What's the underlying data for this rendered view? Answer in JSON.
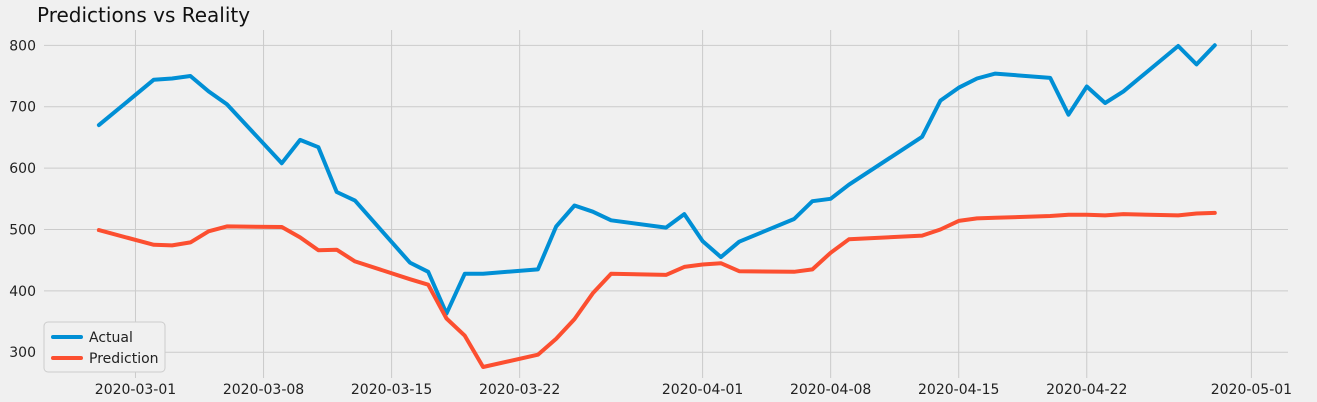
{
  "chart_data": {
    "type": "line",
    "title": "Predictions vs Reality",
    "xlabel": "",
    "ylabel": "",
    "x_range": [
      "2020-02-25",
      "2020-05-03"
    ],
    "ylim": [
      258,
      825
    ],
    "grid": true,
    "legend_position": "lower-left",
    "x_ticks": [
      "2020-03-01",
      "2020-03-08",
      "2020-03-15",
      "2020-03-22",
      "2020-04-01",
      "2020-04-08",
      "2020-04-15",
      "2020-04-22",
      "2020-05-01"
    ],
    "y_ticks": [
      300,
      400,
      500,
      600,
      700,
      800
    ],
    "series": [
      {
        "name": "Actual",
        "color": "#008fd5",
        "points": [
          [
            "2020-02-28",
            670
          ],
          [
            "2020-03-02",
            744
          ],
          [
            "2020-03-03",
            746
          ],
          [
            "2020-03-04",
            750
          ],
          [
            "2020-03-05",
            725
          ],
          [
            "2020-03-06",
            704
          ],
          [
            "2020-03-09",
            608
          ],
          [
            "2020-03-10",
            646
          ],
          [
            "2020-03-11",
            634
          ],
          [
            "2020-03-12",
            561
          ],
          [
            "2020-03-13",
            547
          ],
          [
            "2020-03-16",
            446
          ],
          [
            "2020-03-17",
            431
          ],
          [
            "2020-03-18",
            363
          ],
          [
            "2020-03-19",
            428
          ],
          [
            "2020-03-20",
            428
          ],
          [
            "2020-03-23",
            435
          ],
          [
            "2020-03-24",
            505
          ],
          [
            "2020-03-25",
            539
          ],
          [
            "2020-03-26",
            529
          ],
          [
            "2020-03-27",
            515
          ],
          [
            "2020-03-30",
            503
          ],
          [
            "2020-03-31",
            525
          ],
          [
            "2020-04-01",
            481
          ],
          [
            "2020-04-02",
            455
          ],
          [
            "2020-04-03",
            480
          ],
          [
            "2020-04-06",
            517
          ],
          [
            "2020-04-07",
            546
          ],
          [
            "2020-04-08",
            550
          ],
          [
            "2020-04-09",
            573
          ],
          [
            "2020-04-13",
            651
          ],
          [
            "2020-04-14",
            710
          ],
          [
            "2020-04-15",
            731
          ],
          [
            "2020-04-16",
            746
          ],
          [
            "2020-04-17",
            754
          ],
          [
            "2020-04-20",
            747
          ],
          [
            "2020-04-21",
            687
          ],
          [
            "2020-04-22",
            733
          ],
          [
            "2020-04-23",
            706
          ],
          [
            "2020-04-24",
            725
          ],
          [
            "2020-04-27",
            799
          ],
          [
            "2020-04-28",
            769
          ],
          [
            "2020-04-29",
            800
          ]
        ]
      },
      {
        "name": "Prediction",
        "color": "#fc4f30",
        "points": [
          [
            "2020-02-28",
            499
          ],
          [
            "2020-03-02",
            475
          ],
          [
            "2020-03-03",
            474
          ],
          [
            "2020-03-04",
            479
          ],
          [
            "2020-03-05",
            497
          ],
          [
            "2020-03-06",
            505
          ],
          [
            "2020-03-09",
            504
          ],
          [
            "2020-03-10",
            487
          ],
          [
            "2020-03-11",
            466
          ],
          [
            "2020-03-12",
            467
          ],
          [
            "2020-03-13",
            448
          ],
          [
            "2020-03-16",
            419
          ],
          [
            "2020-03-17",
            410
          ],
          [
            "2020-03-18",
            355
          ],
          [
            "2020-03-19",
            327
          ],
          [
            "2020-03-20",
            276
          ],
          [
            "2020-03-23",
            296
          ],
          [
            "2020-03-24",
            322
          ],
          [
            "2020-03-25",
            354
          ],
          [
            "2020-03-26",
            396
          ],
          [
            "2020-03-27",
            428
          ],
          [
            "2020-03-30",
            426
          ],
          [
            "2020-03-31",
            439
          ],
          [
            "2020-04-01",
            443
          ],
          [
            "2020-04-02",
            445
          ],
          [
            "2020-04-03",
            432
          ],
          [
            "2020-04-06",
            431
          ],
          [
            "2020-04-07",
            435
          ],
          [
            "2020-04-08",
            462
          ],
          [
            "2020-04-09",
            484
          ],
          [
            "2020-04-13",
            490
          ],
          [
            "2020-04-14",
            500
          ],
          [
            "2020-04-15",
            514
          ],
          [
            "2020-04-16",
            518
          ],
          [
            "2020-04-17",
            519
          ],
          [
            "2020-04-20",
            522
          ],
          [
            "2020-04-21",
            524
          ],
          [
            "2020-04-22",
            524
          ],
          [
            "2020-04-23",
            523
          ],
          [
            "2020-04-24",
            525
          ],
          [
            "2020-04-27",
            523
          ],
          [
            "2020-04-28",
            526
          ],
          [
            "2020-04-29",
            527
          ]
        ]
      }
    ]
  }
}
